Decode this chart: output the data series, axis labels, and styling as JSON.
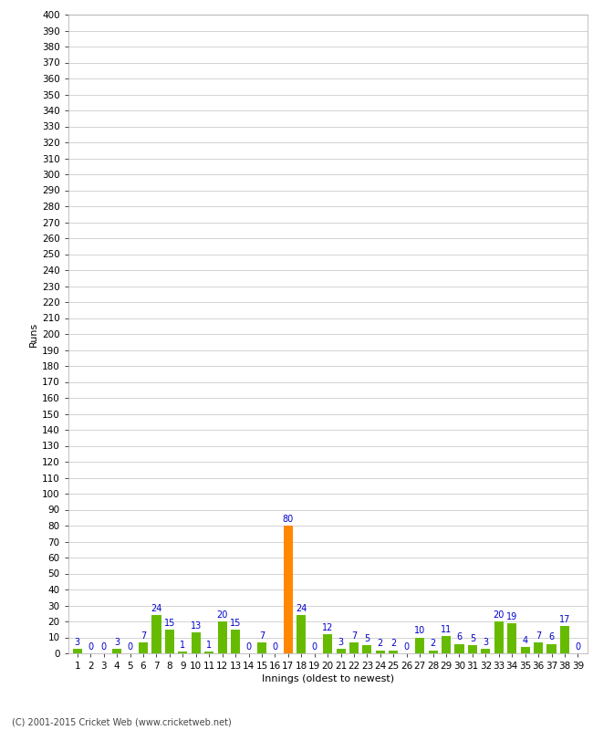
{
  "values": [
    3,
    0,
    0,
    3,
    0,
    7,
    24,
    15,
    1,
    13,
    1,
    20,
    15,
    0,
    7,
    0,
    80,
    24,
    0,
    12,
    3,
    7,
    5,
    2,
    2,
    0,
    10,
    2,
    11,
    6,
    5,
    3,
    20,
    19,
    4,
    7,
    6,
    17,
    0
  ],
  "orange_index": 16,
  "bar_color_green": "#66bb00",
  "bar_color_orange": "#ff8800",
  "label_color": "#0000cc",
  "ylabel": "Runs",
  "xlabel": "Innings (oldest to newest)",
  "ylim": [
    0,
    400
  ],
  "yticks": [
    0,
    10,
    20,
    30,
    40,
    50,
    60,
    70,
    80,
    90,
    100,
    110,
    120,
    130,
    140,
    150,
    160,
    170,
    180,
    190,
    200,
    210,
    220,
    230,
    240,
    250,
    260,
    270,
    280,
    290,
    300,
    310,
    320,
    330,
    340,
    350,
    360,
    370,
    380,
    390,
    400
  ],
  "background_color": "#ffffff",
  "grid_color": "#cccccc",
  "footer": "(C) 2001-2015 Cricket Web (www.cricketweb.net)",
  "footer_color": "#444444",
  "label_fontsize": 7.0,
  "axis_fontsize": 7.5,
  "bar_width": 0.7
}
